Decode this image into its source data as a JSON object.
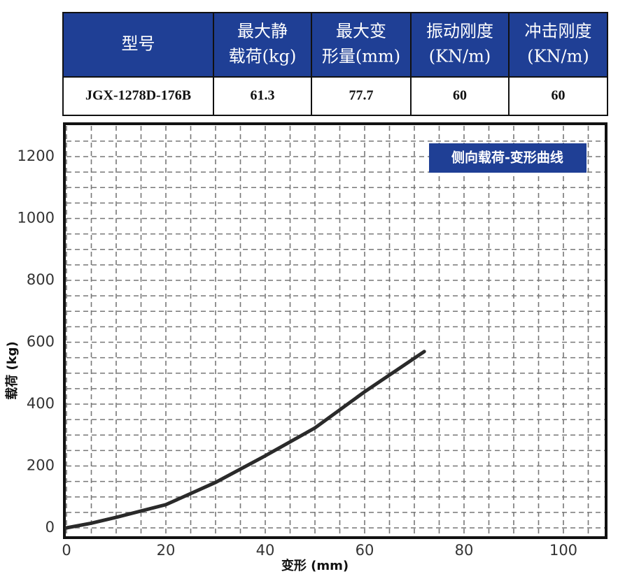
{
  "table": {
    "header": [
      [
        "型号"
      ],
      [
        "最大静",
        "载荷(kg)"
      ],
      [
        "最大变",
        "形量(mm)"
      ],
      [
        "振动刚度",
        "(KN/m)"
      ],
      [
        "冲击刚度",
        "(KN/m)"
      ]
    ],
    "rows": [
      [
        "JGX-1278D-176B",
        "61.3",
        "77.7",
        "60",
        "60"
      ]
    ]
  },
  "chart_data": {
    "type": "line",
    "legend_title": "侧向载荷-变形曲线",
    "xlabel": "变形 (mm)",
    "ylabel": "载荷 (kg)",
    "x": [
      0,
      5,
      10,
      20,
      30,
      40,
      50,
      60,
      66,
      72
    ],
    "series": [
      {
        "color": "#2a2a2a",
        "values": [
          0,
          15,
          34,
          75,
          147,
          233,
          323,
          440,
          505,
          570
        ]
      }
    ],
    "xlim": [
      0,
      109
    ],
    "ylim": [
      0,
      1300
    ],
    "xticks": [
      0,
      20,
      40,
      60,
      80,
      100
    ],
    "yticks": [
      0,
      200,
      400,
      600,
      800,
      1000,
      1200
    ],
    "grid": true
  }
}
